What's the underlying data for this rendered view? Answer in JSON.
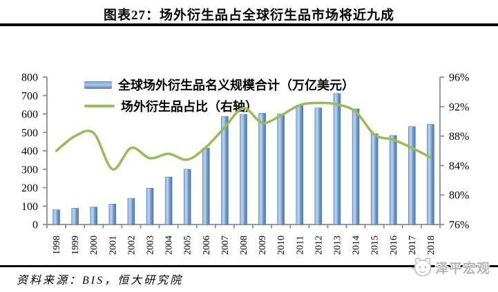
{
  "title": "图表27：场外衍生品占全球衍生品市场将近九成",
  "source": "资料来源：BIS，恒大研究院",
  "watermark": "泽平宏观",
  "colors": {
    "bar_main": "#4f81bd",
    "bar_light": "#bed4ee",
    "line": "#9bbb59",
    "axis": "#8c8c8c",
    "divider": "#000000",
    "watermark_gray": "#b5b5b5"
  },
  "chart_data": {
    "type": "bar+line combo",
    "title": "图表27：场外衍生品占全球衍生品市场将近九成",
    "grid": false,
    "legend_position": "top-left",
    "categories": [
      "1998",
      "1999",
      "2000",
      "2001",
      "2002",
      "2003",
      "2004",
      "2005",
      "2006",
      "2007",
      "2008",
      "2009",
      "2010",
      "2011",
      "2012",
      "2013",
      "2014",
      "2015",
      "2016",
      "2017",
      "2018"
    ],
    "series": [
      {
        "name": "全球场外衍生品名义规模合计（万亿美元）",
        "type": "bar",
        "axis": "left",
        "color": "#4f81bd",
        "values": [
          80,
          88,
          95,
          111,
          142,
          197,
          258,
          300,
          415,
          586,
          598,
          604,
          601,
          648,
          633,
          711,
          628,
          493,
          483,
          532,
          544
        ]
      },
      {
        "name": "场外衍生品占比（右轴）",
        "type": "line",
        "axis": "right",
        "color": "#9bbb59",
        "values": [
          86.0,
          88.0,
          88.4,
          83.5,
          86.4,
          85.0,
          85.6,
          84.8,
          86.5,
          89.2,
          91.8,
          89.8,
          90.8,
          92.2,
          92.5,
          92.3,
          91.3,
          88.2,
          87.5,
          86.4,
          85.1
        ]
      }
    ],
    "left_axis": {
      "min": 0,
      "max": 800,
      "step": 100,
      "tick_labels": [
        "0",
        "100",
        "200",
        "300",
        "400",
        "500",
        "600",
        "700",
        "800"
      ]
    },
    "right_axis": {
      "min": 76,
      "max": 96,
      "step": 4,
      "tick_labels": [
        "76%",
        "80%",
        "84%",
        "88%",
        "92%",
        "96%"
      ]
    }
  }
}
